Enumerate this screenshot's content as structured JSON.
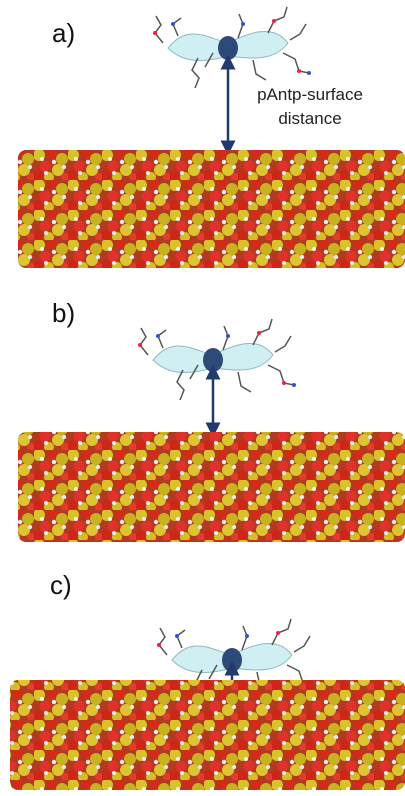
{
  "panels": [
    {
      "label": "a)"
    },
    {
      "label": "b)"
    },
    {
      "label": "c)"
    }
  ],
  "annotation": {
    "lines": [
      "pAntp-surface",
      "distance"
    ]
  }
}
